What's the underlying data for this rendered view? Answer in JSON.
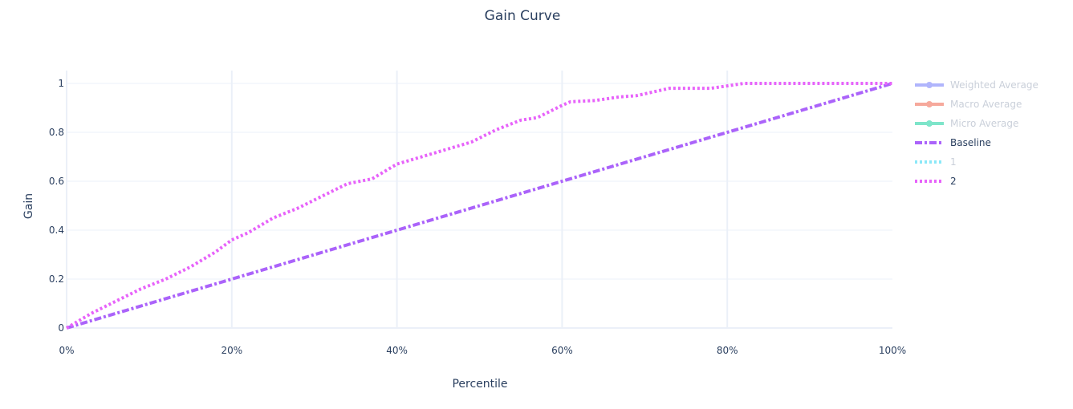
{
  "chart_data": {
    "type": "line",
    "title": "Gain Curve",
    "xlabel": "Percentile",
    "ylabel": "Gain",
    "xlim": [
      0,
      1
    ],
    "ylim": [
      0,
      1
    ],
    "x_ticks": [
      {
        "value": 0,
        "label": "0%"
      },
      {
        "value": 0.2,
        "label": "20%"
      },
      {
        "value": 0.4,
        "label": "40%"
      },
      {
        "value": 0.6,
        "label": "60%"
      },
      {
        "value": 0.8,
        "label": "80%"
      },
      {
        "value": 1,
        "label": "100%"
      }
    ],
    "y_ticks": [
      {
        "value": 0,
        "label": "0"
      },
      {
        "value": 0.2,
        "label": "0.2"
      },
      {
        "value": 0.4,
        "label": "0.4"
      },
      {
        "value": 0.6,
        "label": "0.6"
      },
      {
        "value": 0.8,
        "label": "0.8"
      },
      {
        "value": 1,
        "label": "1"
      }
    ],
    "grid": true,
    "legend_position": "right",
    "series": [
      {
        "name": "Weighted Average",
        "color": "#636efa",
        "style": "solid-markers",
        "visible": false,
        "x": [],
        "y": []
      },
      {
        "name": "Macro Average",
        "color": "#ef553b",
        "style": "solid-markers",
        "visible": false,
        "x": [],
        "y": []
      },
      {
        "name": "Micro Average",
        "color": "#00cc96",
        "style": "solid-markers",
        "visible": false,
        "x": [],
        "y": []
      },
      {
        "name": "Baseline",
        "color": "#ab63fa",
        "style": "dashdot",
        "visible": true,
        "x": [
          0,
          1
        ],
        "y": [
          0,
          1
        ]
      },
      {
        "name": "1",
        "color": "#19d3f3",
        "style": "dot",
        "visible": false,
        "x": [],
        "y": []
      },
      {
        "name": "2",
        "color": "#e763fa",
        "style": "dot",
        "visible": true,
        "x": [
          0,
          0.03,
          0.06,
          0.09,
          0.12,
          0.15,
          0.18,
          0.2,
          0.22,
          0.25,
          0.28,
          0.31,
          0.34,
          0.37,
          0.4,
          0.43,
          0.46,
          0.49,
          0.52,
          0.55,
          0.57,
          0.6,
          0.61,
          0.64,
          0.67,
          0.69,
          0.71,
          0.73,
          0.75,
          0.78,
          0.8,
          0.82,
          0.85,
          0.9,
          0.95,
          1
        ],
        "y": [
          0,
          0.06,
          0.11,
          0.16,
          0.2,
          0.25,
          0.31,
          0.36,
          0.39,
          0.45,
          0.49,
          0.54,
          0.59,
          0.61,
          0.67,
          0.7,
          0.73,
          0.76,
          0.81,
          0.85,
          0.86,
          0.91,
          0.925,
          0.93,
          0.945,
          0.95,
          0.965,
          0.98,
          0.98,
          0.98,
          0.99,
          1,
          1,
          1,
          1,
          1
        ]
      }
    ]
  }
}
